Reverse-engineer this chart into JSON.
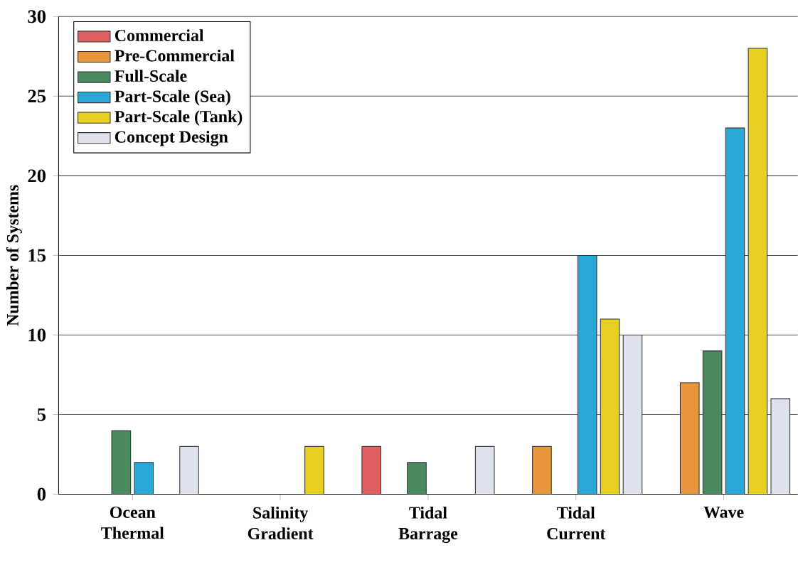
{
  "chart_data": {
    "type": "bar",
    "ylabel": "Number of Systems",
    "categories": [
      "Ocean Thermal",
      "Salinity Gradient",
      "Tidal Barrage",
      "Tidal Current",
      "Wave"
    ],
    "series": [
      {
        "name": "Commercial",
        "color": "#e06060",
        "values": [
          null,
          null,
          3,
          null,
          null
        ]
      },
      {
        "name": "Pre-Commercial",
        "color": "#e8963c",
        "values": [
          null,
          null,
          null,
          3,
          7
        ]
      },
      {
        "name": "Full-Scale",
        "color": "#4a8a5e",
        "values": [
          4,
          null,
          2,
          null,
          9
        ]
      },
      {
        "name": "Part-Scale (Sea)",
        "color": "#29a8d8",
        "values": [
          2,
          null,
          null,
          15,
          23
        ]
      },
      {
        "name": "Part-Scale (Tank)",
        "color": "#e8d020",
        "values": [
          null,
          3,
          null,
          11,
          28
        ]
      },
      {
        "name": "Concept Design",
        "color": "#dde2ee",
        "values": [
          3,
          null,
          3,
          10,
          6
        ]
      }
    ],
    "ylim": [
      0,
      30
    ],
    "yticks": [
      0,
      5,
      10,
      15,
      20,
      25,
      30
    ],
    "grid": "y",
    "legend": "top left"
  }
}
